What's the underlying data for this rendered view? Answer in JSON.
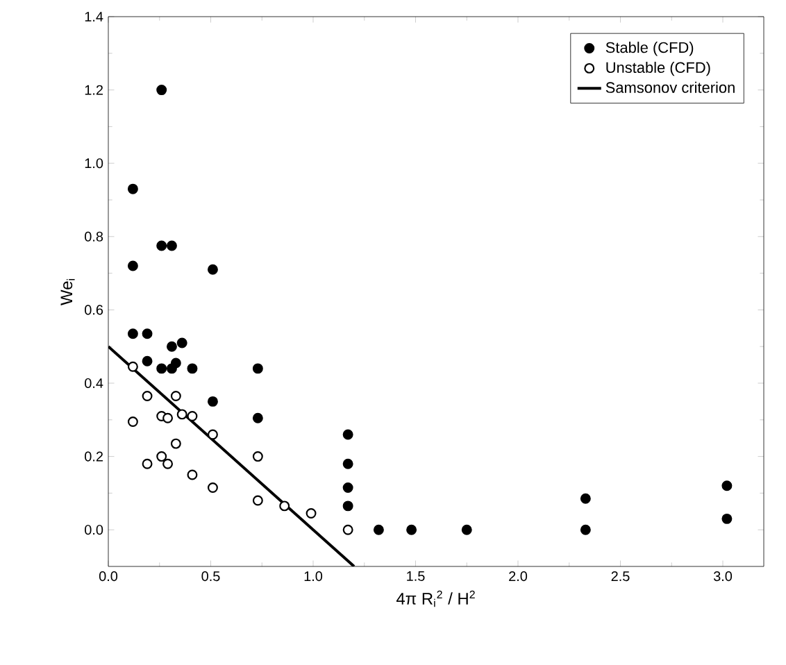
{
  "chart_data": {
    "type": "scatter",
    "xlabel": "4π R$_{i}$$^{2}$ / H$^{2}$",
    "ylabel": "We$_{i}$",
    "xlim": [
      0,
      3.2
    ],
    "ylim": [
      -0.1,
      1.4
    ],
    "xticks": [
      {
        "value": 0,
        "label": "0.0"
      },
      {
        "value": 0.5,
        "label": "0.5"
      },
      {
        "value": 1,
        "label": "1.0"
      },
      {
        "value": 1.5,
        "label": "1.5"
      },
      {
        "value": 2,
        "label": "2.0"
      },
      {
        "value": 2.5,
        "label": "2.5"
      },
      {
        "value": 3,
        "label": "3.0"
      }
    ],
    "yticks": [
      {
        "value": 0,
        "label": "0.0"
      },
      {
        "value": 0.2,
        "label": "0.2"
      },
      {
        "value": 0.4,
        "label": "0.4"
      },
      {
        "value": 0.6,
        "label": "0.6"
      },
      {
        "value": 0.8,
        "label": "0.8"
      },
      {
        "value": 1,
        "label": "1.0"
      },
      {
        "value": 1.2,
        "label": "1.2"
      },
      {
        "value": 1.4,
        "label": "1.4"
      }
    ],
    "legend": "top right",
    "grid": false,
    "series": [
      {
        "name": "Stable (CFD)",
        "marker": "circle",
        "color": "#000000",
        "x": [
          0.12,
          0.12,
          0.12,
          0.19,
          0.19,
          0.26,
          0.26,
          0.31,
          0.26,
          0.31,
          0.31,
          0.33,
          0.36,
          0.41,
          0.51,
          0.51,
          0.73,
          0.73,
          1.17,
          1.17,
          1.17,
          1.17,
          1.32,
          1.48,
          1.75,
          2.33,
          2.33,
          3.02,
          3.02
        ],
        "values": [
          0.93,
          0.72,
          0.535,
          0.535,
          0.46,
          1.2,
          0.775,
          0.775,
          0.44,
          0.5,
          0.44,
          0.455,
          0.51,
          0.44,
          0.71,
          0.35,
          0.44,
          0.305,
          0.26,
          0.18,
          0.115,
          0.065,
          0,
          0,
          0,
          0.085,
          0,
          0.12,
          0.03
        ]
      },
      {
        "name": "Unstable (CFD)",
        "marker": "circle",
        "color": "#000000",
        "x": [
          0.12,
          0.12,
          0.19,
          0.19,
          0.26,
          0.29,
          0.26,
          0.29,
          0.33,
          0.33,
          0.36,
          0.41,
          0.41,
          0.51,
          0.51,
          0.73,
          0.73,
          0.86,
          0.99,
          1.17
        ],
        "values": [
          0.445,
          0.295,
          0.365,
          0.18,
          0.31,
          0.305,
          0.2,
          0.18,
          0.365,
          0.235,
          0.315,
          0.31,
          0.15,
          0.26,
          0.115,
          0.2,
          0.08,
          0.065,
          0.045,
          0
        ]
      },
      {
        "name": "Samsonov criterion",
        "type": "line",
        "marker": "none",
        "line_style": "solid",
        "color": "#000000",
        "x": [
          0,
          1.2
        ],
        "values": [
          0.5,
          -0.1
        ]
      }
    ]
  }
}
